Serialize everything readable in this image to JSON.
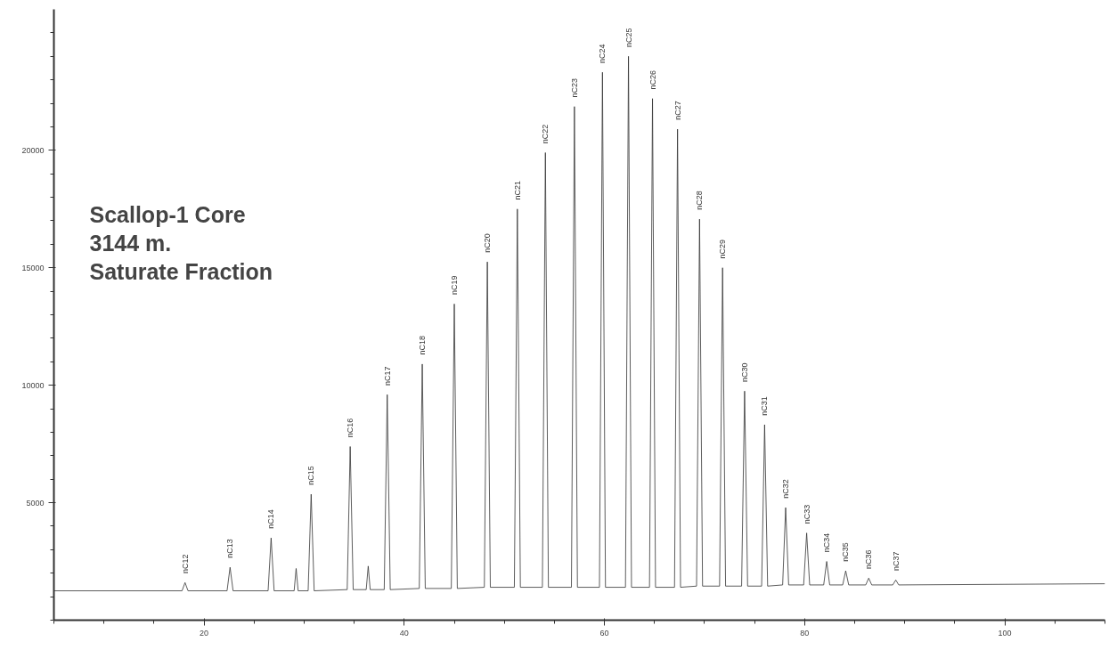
{
  "chart_data": {
    "type": "line",
    "title": "Scallop-1 Core\n3144 m.\nSaturate Fraction",
    "xlim": [
      5,
      110
    ],
    "xticks": [
      20,
      40,
      60,
      80,
      100
    ],
    "ylim": [
      0,
      26000
    ],
    "yticks": [
      5000,
      10000,
      15000,
      20000
    ],
    "grid": false,
    "marker": "none",
    "line_style": "solid",
    "series": [
      {
        "color": "#333333",
        "x": [
          5,
          17.8,
          18.1,
          18.4,
          22.3,
          22.6,
          22.9,
          26.4,
          26.7,
          27.0,
          29.0,
          29.2,
          29.4,
          30.4,
          30.7,
          31.0,
          34.3,
          34.6,
          34.9,
          36.2,
          36.4,
          36.6,
          38.0,
          38.3,
          38.6,
          41.5,
          41.8,
          42.1,
          44.7,
          45.0,
          45.3,
          48.0,
          48.3,
          48.6,
          51.0,
          51.3,
          51.6,
          53.8,
          54.1,
          54.4,
          56.7,
          57.0,
          57.3,
          59.5,
          59.8,
          60.1,
          62.1,
          62.4,
          62.7,
          64.5,
          64.8,
          65.1,
          67.0,
          67.3,
          67.6,
          69.2,
          69.5,
          69.8,
          71.5,
          71.8,
          72.1,
          73.7,
          74.0,
          74.3,
          75.7,
          76.0,
          76.3,
          77.8,
          78.1,
          78.4,
          79.9,
          80.2,
          80.5,
          81.9,
          82.2,
          82.5,
          83.8,
          84.1,
          84.4,
          86.1,
          86.4,
          86.7,
          88.8,
          89.1,
          89.4,
          110
        ],
        "values": [
          1250,
          1250,
          1600,
          1250,
          1250,
          2250,
          1250,
          1250,
          3500,
          1250,
          1250,
          2200,
          1250,
          1250,
          5360,
          1250,
          1300,
          7390,
          1300,
          1300,
          2300,
          1300,
          1300,
          9600,
          1300,
          1350,
          10900,
          1350,
          1350,
          13460,
          1350,
          1400,
          15250,
          1400,
          1400,
          17500,
          1400,
          1400,
          19900,
          1400,
          1400,
          21860,
          1400,
          1400,
          23320,
          1400,
          1400,
          24000,
          1400,
          1400,
          22200,
          1400,
          1400,
          20900,
          1400,
          1450,
          17070,
          1450,
          1450,
          15000,
          1450,
          1450,
          9750,
          1450,
          1450,
          8320,
          1450,
          1500,
          4790,
          1500,
          1500,
          3710,
          1500,
          1500,
          2500,
          1500,
          1500,
          2100,
          1500,
          1500,
          1790,
          1500,
          1500,
          1710,
          1500,
          1550
        ]
      }
    ],
    "annotations": [
      {
        "text": "nC12",
        "x": 18.1,
        "y": 1600
      },
      {
        "text": "nC13",
        "x": 22.6,
        "y": 2250
      },
      {
        "text": "nC14",
        "x": 26.7,
        "y": 3500
      },
      {
        "text": "nC15",
        "x": 30.7,
        "y": 5360
      },
      {
        "text": "nC16",
        "x": 34.6,
        "y": 7390
      },
      {
        "text": "nC17",
        "x": 38.3,
        "y": 9600
      },
      {
        "text": "nC18",
        "x": 41.8,
        "y": 10900
      },
      {
        "text": "nC19",
        "x": 45.0,
        "y": 13460
      },
      {
        "text": "nC20",
        "x": 48.3,
        "y": 15250
      },
      {
        "text": "nC21",
        "x": 51.3,
        "y": 17500
      },
      {
        "text": "nC22",
        "x": 54.1,
        "y": 19900
      },
      {
        "text": "nC23",
        "x": 57.0,
        "y": 21860
      },
      {
        "text": "nC24",
        "x": 59.8,
        "y": 23320
      },
      {
        "text": "nC25",
        "x": 62.4,
        "y": 24000
      },
      {
        "text": "nC26",
        "x": 64.8,
        "y": 22200
      },
      {
        "text": "nC27",
        "x": 67.3,
        "y": 20900
      },
      {
        "text": "nC28",
        "x": 69.5,
        "y": 17070
      },
      {
        "text": "nC29",
        "x": 71.8,
        "y": 15000
      },
      {
        "text": "nC30",
        "x": 74.0,
        "y": 9750
      },
      {
        "text": "nC31",
        "x": 76.0,
        "y": 8320
      },
      {
        "text": "nC32",
        "x": 78.1,
        "y": 4790
      },
      {
        "text": "nC33",
        "x": 80.2,
        "y": 3710
      },
      {
        "text": "nC34",
        "x": 82.2,
        "y": 2500
      },
      {
        "text": "nC35",
        "x": 84.1,
        "y": 2100
      },
      {
        "text": "nC36",
        "x": 86.4,
        "y": 1790
      },
      {
        "text": "nC37",
        "x": 89.1,
        "y": 1710
      }
    ]
  }
}
